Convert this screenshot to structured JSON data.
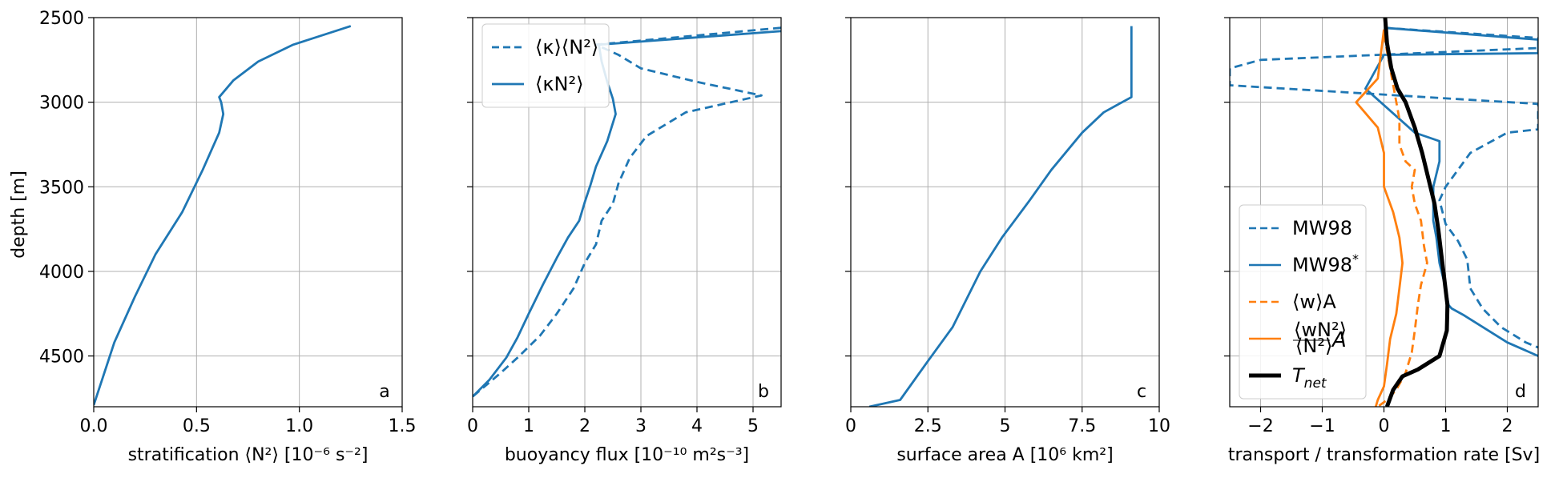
{
  "figure": {
    "ylabel": "depth [m]"
  },
  "chart_data": [
    {
      "type": "line",
      "panel_letter": "a",
      "xlabel": "stratification ⟨N²⟩ [10⁻⁶ s⁻²]",
      "xlim": [
        0,
        1.5
      ],
      "ylim": [
        4800,
        2500
      ],
      "xticks": [
        0,
        0.5,
        1.0,
        1.5
      ],
      "xtick_labels": [
        "0.0",
        "0.5",
        "1.0",
        "1.5"
      ],
      "yticks": [
        2500,
        3000,
        3500,
        4000,
        4500
      ],
      "ytick_labels": [
        "2500",
        "3000",
        "3500",
        "4000",
        "4500"
      ],
      "grid": true,
      "series": [
        {
          "style": "solid",
          "color": "#1f77b4",
          "x": [
            1.25,
            0.97,
            0.8,
            0.68,
            0.61,
            0.62,
            0.63,
            0.61,
            0.53,
            0.43,
            0.3,
            0.2,
            0.1,
            0.0
          ],
          "y": [
            2550,
            2660,
            2760,
            2870,
            2970,
            3000,
            3070,
            3180,
            3400,
            3650,
            3900,
            4150,
            4420,
            4790
          ]
        }
      ]
    },
    {
      "type": "line",
      "panel_letter": "b",
      "xlabel": "buoyancy flux [10⁻¹⁰ m²s⁻³]",
      "xlim": [
        0,
        5.5
      ],
      "ylim": [
        4800,
        2500
      ],
      "xticks": [
        0,
        1,
        2,
        3,
        4,
        5
      ],
      "xtick_labels": [
        "0",
        "1",
        "2",
        "3",
        "4",
        "5"
      ],
      "grid": true,
      "legend": {
        "placement": "upper-left",
        "entries": [
          {
            "label": "⟨κ⟩⟨N²⟩",
            "style": "dashed",
            "color": "#1f77b4"
          },
          {
            "label": "⟨κN²⟩",
            "style": "solid",
            "color": "#1f77b4"
          }
        ]
      },
      "series": [
        {
          "name": "⟨κ⟩⟨N²⟩",
          "style": "dashed",
          "color": "#1f77b4",
          "x": [
            5.5,
            2.2,
            2.6,
            3.0,
            4.0,
            5.15,
            3.8,
            3.1,
            2.8,
            2.6,
            2.5,
            2.3,
            2.2,
            2.0,
            1.8,
            1.5,
            1.2,
            0.8,
            0.5,
            0.0
          ],
          "y": [
            2560,
            2660,
            2720,
            2800,
            2880,
            2960,
            3060,
            3200,
            3330,
            3480,
            3600,
            3700,
            3840,
            3950,
            4100,
            4250,
            4380,
            4510,
            4600,
            4740
          ]
        },
        {
          "name": "⟨κN²⟩",
          "style": "solid",
          "color": "#1f77b4",
          "x": [
            5.5,
            2.25,
            2.3,
            2.4,
            2.5,
            2.55,
            2.4,
            2.2,
            2.1,
            2.0,
            1.9,
            1.7,
            1.5,
            1.25,
            1.0,
            0.8,
            0.6,
            0.3,
            0.0
          ],
          "y": [
            2580,
            2660,
            2760,
            2880,
            2980,
            3070,
            3230,
            3380,
            3490,
            3590,
            3700,
            3800,
            3920,
            4080,
            4250,
            4390,
            4510,
            4640,
            4740
          ]
        }
      ]
    },
    {
      "type": "line",
      "panel_letter": "c",
      "xlabel": "surface area A [10⁶ km²]",
      "xlim": [
        0,
        10
      ],
      "ylim": [
        4800,
        2500
      ],
      "xticks": [
        0,
        2.5,
        5,
        7.5,
        10
      ],
      "xtick_labels": [
        "0",
        "2.5",
        "5",
        "7.5",
        "10"
      ],
      "grid": true,
      "series": [
        {
          "style": "solid",
          "color": "#1f77b4",
          "x": [
            9.1,
            9.1,
            9.1,
            8.2,
            7.5,
            6.5,
            5.8,
            4.9,
            4.2,
            3.3,
            2.5,
            1.6,
            0.6
          ],
          "y": [
            2550,
            2850,
            2970,
            3060,
            3180,
            3400,
            3580,
            3800,
            4000,
            4330,
            4530,
            4760,
            4800
          ]
        }
      ]
    },
    {
      "type": "line",
      "panel_letter": "d",
      "xlabel": "transport / transformation rate [Sv]",
      "xlim": [
        -2.5,
        2.5
      ],
      "ylim": [
        4800,
        2500
      ],
      "xticks": [
        -2,
        -1,
        0,
        1,
        2
      ],
      "xtick_labels": [
        "−2",
        "−1",
        "0",
        "1",
        "2"
      ],
      "grid": true,
      "legend": {
        "placement": "lower-left",
        "entries": [
          {
            "label": "MW98",
            "style": "dashed",
            "color": "#1f77b4",
            "width": 2.5
          },
          {
            "label": "MW98*",
            "style": "solid",
            "color": "#1f77b4",
            "width": 2.5
          },
          {
            "label": "⟨w⟩A",
            "style": "dashed",
            "color": "#ff7f0e",
            "width": 2.5
          },
          {
            "label": "⟨wN²⟩/⟨N²⟩ A",
            "style": "solid",
            "color": "#ff7f0e",
            "width": 2.5
          },
          {
            "label": "T_net",
            "style": "solid",
            "color": "#000000",
            "width": 5
          }
        ]
      },
      "series": [
        {
          "name": "MW98",
          "style": "dashed",
          "color": "#1f77b4",
          "x": [
            0.0,
            2.5,
            2.5,
            -2.0,
            -2.5,
            -2.5,
            2.5,
            2.5,
            2.0,
            1.4,
            1.0,
            0.9,
            1.0,
            1.2,
            1.35,
            1.4,
            1.6,
            1.9,
            2.3,
            2.5
          ],
          "y": [
            2560,
            2620,
            2680,
            2750,
            2800,
            2900,
            3010,
            3160,
            3180,
            3300,
            3500,
            3580,
            3720,
            3820,
            3930,
            4100,
            4220,
            4330,
            4420,
            4450
          ]
        },
        {
          "name": "MW98*",
          "style": "solid",
          "color": "#1f77b4",
          "x": [
            0.0,
            2.5,
            2.5,
            0.0,
            -0.3,
            0.5,
            0.9,
            0.9,
            0.8,
            0.8,
            0.8,
            0.85,
            0.9,
            1.0,
            1.05,
            1.1,
            1.3,
            2.0,
            2.5
          ],
          "y": [
            2560,
            2630,
            2710,
            2720,
            2920,
            3180,
            3230,
            3350,
            3500,
            3600,
            3700,
            3800,
            3950,
            4100,
            4200,
            4220,
            4260,
            4420,
            4500
          ]
        },
        {
          "name": "⟨w⟩A",
          "style": "dashed",
          "color": "#ff7f0e",
          "x": [
            0.0,
            0.25,
            0.25,
            0.35,
            0.5,
            0.45,
            0.5,
            0.6,
            0.65,
            0.7,
            0.6,
            0.55,
            0.5,
            0.45,
            0.35,
            0.2,
            0.05,
            -0.1
          ],
          "y": [
            2600,
            3100,
            3250,
            3350,
            3400,
            3500,
            3600,
            3700,
            3850,
            3950,
            4080,
            4200,
            4350,
            4480,
            4600,
            4700,
            4760,
            4800
          ]
        },
        {
          "name": "⟨wN²⟩/⟨N²⟩ A",
          "style": "solid",
          "color": "#ff7f0e",
          "x": [
            0.0,
            -0.1,
            -0.3,
            -0.45,
            -0.1,
            0.0,
            0.0,
            0.15,
            0.25,
            0.3,
            0.25,
            0.2,
            0.1,
            0.05,
            0.0,
            -0.1,
            -0.15
          ],
          "y": [
            2570,
            2860,
            2940,
            3000,
            3150,
            3300,
            3500,
            3650,
            3800,
            3950,
            4100,
            4250,
            4400,
            4550,
            4680,
            4760,
            4820
          ]
        },
        {
          "name": "T_net",
          "style": "solid",
          "color": "#000000",
          "width": 5,
          "x": [
            0.02,
            0.05,
            0.12,
            0.22,
            0.35,
            0.5,
            0.62,
            0.72,
            0.82,
            0.88,
            0.93,
            0.98,
            1.03,
            1.02,
            0.9,
            0.55,
            0.3,
            0.15,
            0.05
          ],
          "y": [
            2500,
            2650,
            2800,
            2920,
            3000,
            3150,
            3300,
            3450,
            3600,
            3750,
            3900,
            4050,
            4200,
            4350,
            4500,
            4580,
            4620,
            4700,
            4800
          ]
        }
      ]
    }
  ]
}
